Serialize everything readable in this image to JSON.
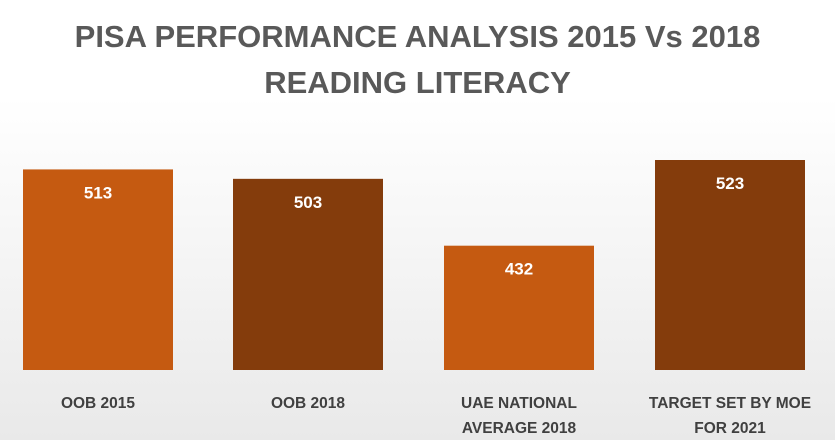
{
  "chart_data": {
    "type": "bar",
    "title_lines": [
      "PISA PERFORMANCE ANALYSIS 2015 Vs 2018",
      "READING LITERACY"
    ],
    "categories": [
      [
        "OOB 2015"
      ],
      [
        "OOB 2018"
      ],
      [
        "UAE NATIONAL",
        "AVERAGE 2018"
      ],
      [
        "TARGET SET BY MOE",
        "FOR 2021"
      ]
    ],
    "values": [
      513,
      503,
      432,
      523
    ],
    "bar_colors": [
      "#C55A11",
      "#843C0C",
      "#C55A11",
      "#843C0C"
    ],
    "value_label_color": "#FFFFFF",
    "xlabel": "",
    "ylabel": "",
    "y_axis_visible": false,
    "grid": false,
    "legend": "none"
  }
}
